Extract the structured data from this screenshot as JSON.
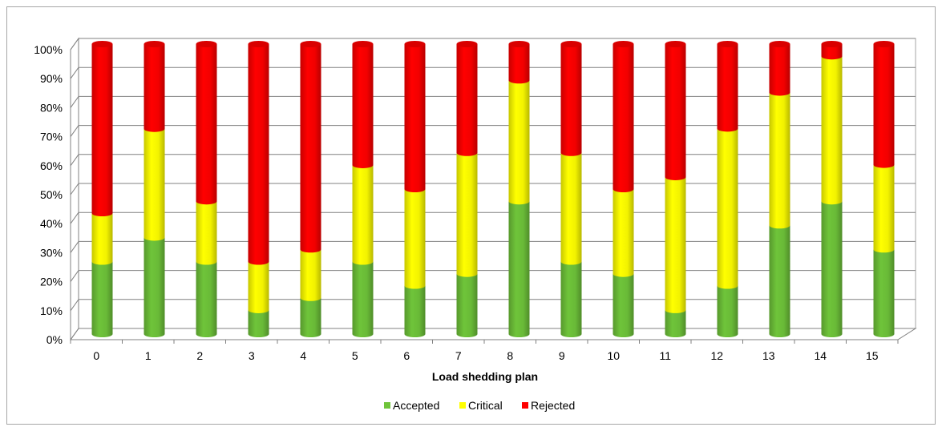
{
  "chart_data": {
    "type": "bar",
    "stacked": "percent",
    "style": "3d-cylinder",
    "categories": [
      "0",
      "1",
      "2",
      "3",
      "4",
      "5",
      "6",
      "7",
      "8",
      "9",
      "10",
      "11",
      "12",
      "13",
      "14",
      "15"
    ],
    "series": [
      {
        "name": "Accepted",
        "color": "#6fc43a",
        "values": [
          25,
          33.3,
          25,
          8.3,
          12.5,
          25,
          16.7,
          20.8,
          45.8,
          25,
          20.8,
          8.3,
          16.7,
          37.5,
          45.8,
          29.2
        ]
      },
      {
        "name": "Critical",
        "color": "#ffff00",
        "values": [
          16.7,
          37.5,
          20.8,
          16.7,
          16.7,
          33.3,
          33.3,
          41.7,
          41.7,
          37.5,
          29.2,
          45.8,
          54.2,
          45.8,
          50,
          29.2
        ]
      },
      {
        "name": "Rejected",
        "color": "#ff0000",
        "values": [
          58.3,
          29.2,
          54.2,
          75,
          70.8,
          41.7,
          50,
          37.5,
          12.5,
          37.5,
          50,
          45.8,
          29.1,
          16.7,
          4.2,
          41.6
        ]
      }
    ],
    "y_ticks": [
      "0%",
      "10%",
      "20%",
      "30%",
      "40%",
      "50%",
      "60%",
      "70%",
      "80%",
      "90%",
      "100%"
    ],
    "ylim": [
      0,
      100
    ],
    "xlabel": "Load shedding plan",
    "ylabel": "",
    "title": "",
    "grid": true,
    "legend_position": "bottom"
  }
}
